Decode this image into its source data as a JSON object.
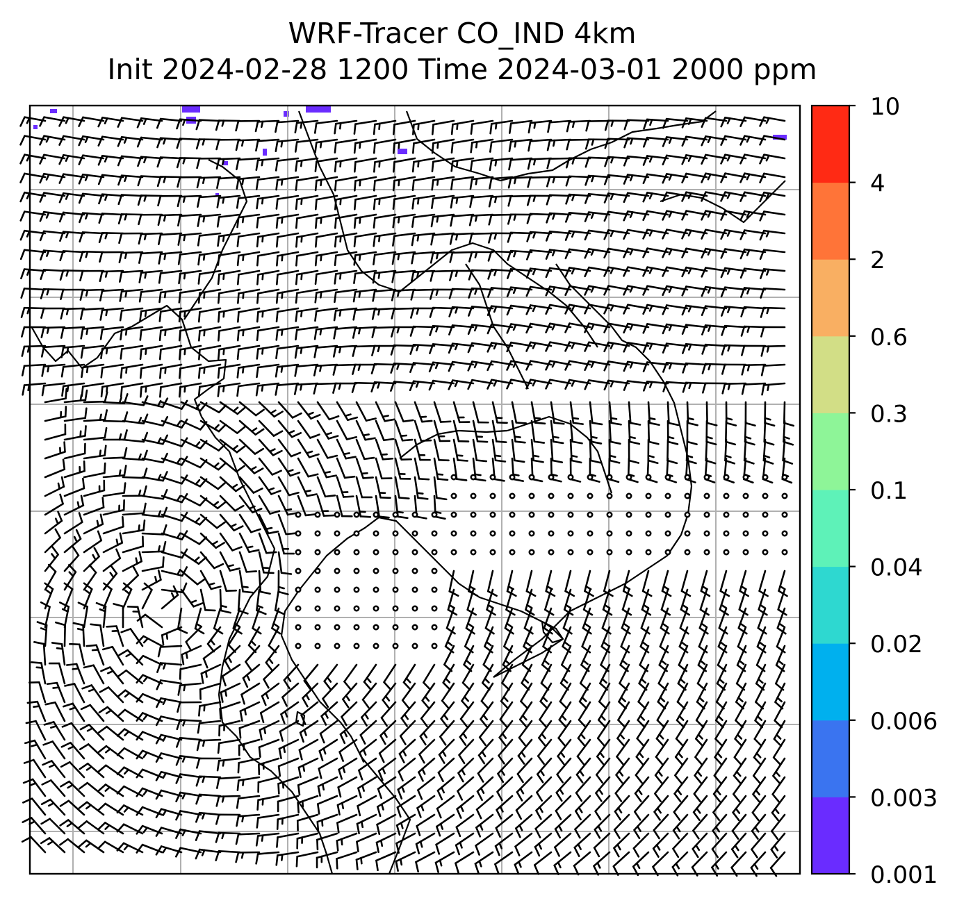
{
  "title": {
    "line1": "WRF-Tracer CO_IND 4km",
    "line2": "Init 2024-02-28 1200 Time 2024-03-01 2000 ppm"
  },
  "colorbar": {
    "levels": [
      "0.001",
      "0.003",
      "0.006",
      "0.02",
      "0.04",
      "0.1",
      "0.3",
      "0.6",
      "2",
      "4",
      "10"
    ],
    "colors": [
      "#6a2cff",
      "#3a74f0",
      "#00b0ee",
      "#2ed8d0",
      "#5ef2b8",
      "#8ef598",
      "#d2de86",
      "#f9af62",
      "#ff7438",
      "#ff2a14"
    ]
  },
  "map": {
    "grid_lines": "on",
    "wind_field": "barbs",
    "calm_marker": "circle",
    "tracer_patches_color": "#6a2cff"
  }
}
